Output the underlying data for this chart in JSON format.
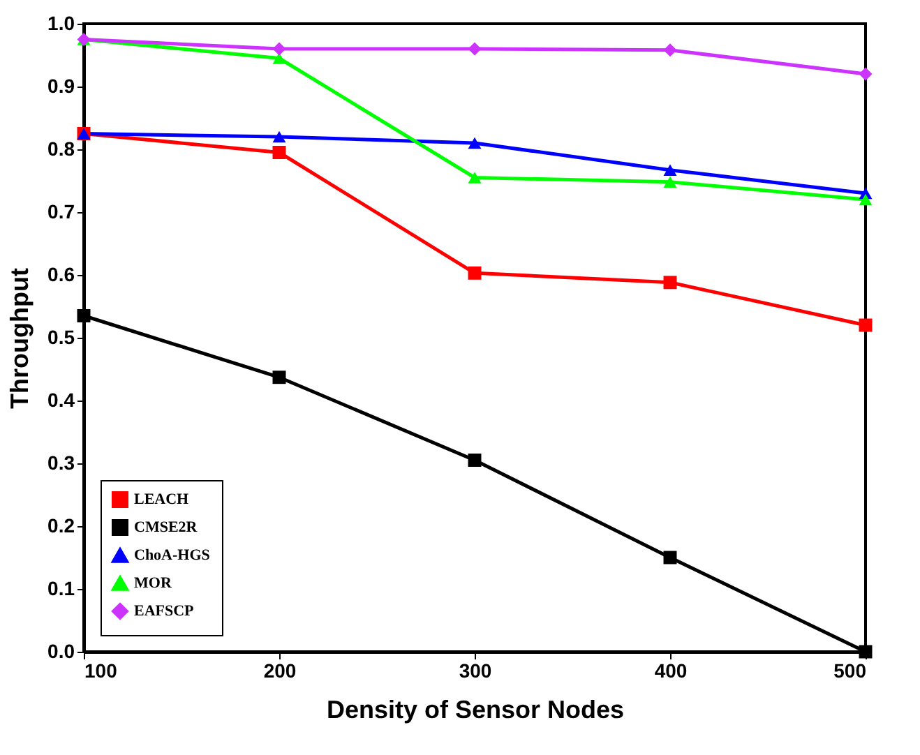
{
  "chart_data": {
    "type": "line",
    "xlabel": "Density of Sensor Nodes",
    "ylabel": "Throughput",
    "x": [
      100,
      200,
      300,
      400,
      500
    ],
    "xlim": [
      100,
      500
    ],
    "xticks": [
      100,
      200,
      300,
      400,
      500
    ],
    "ylim": [
      0,
      1
    ],
    "yticks": [
      {
        "value": 0,
        "label": "0.0"
      },
      0.1,
      0.2,
      0.3,
      0.4,
      0.5,
      0.6,
      0.7,
      0.8,
      0.9,
      {
        "value": 1,
        "label": "1.0"
      }
    ],
    "grid": false,
    "legend": "bottom left",
    "line_style": "solid",
    "series": [
      {
        "name": "LEACH",
        "color": "#ff0000",
        "marker": "square",
        "values": [
          0.825,
          0.795,
          0.603,
          0.588,
          0.52
        ]
      },
      {
        "name": "CMSE2R",
        "color": "#000000",
        "marker": "square",
        "values": [
          0.535,
          0.437,
          0.305,
          0.15,
          0.0
        ]
      },
      {
        "name": "ChoA-HGS",
        "color": "#0000ff",
        "marker": "triangle",
        "values": [
          0.825,
          0.82,
          0.81,
          0.767,
          0.73
        ]
      },
      {
        "name": "MOR",
        "color": "#00ff00",
        "marker": "triangle",
        "values": [
          0.975,
          0.945,
          0.755,
          0.748,
          0.72
        ]
      },
      {
        "name": "EAFSCP",
        "color": "#cc33ff",
        "marker": "diamond",
        "values": [
          0.975,
          0.96,
          0.96,
          0.958,
          0.92
        ]
      }
    ]
  }
}
